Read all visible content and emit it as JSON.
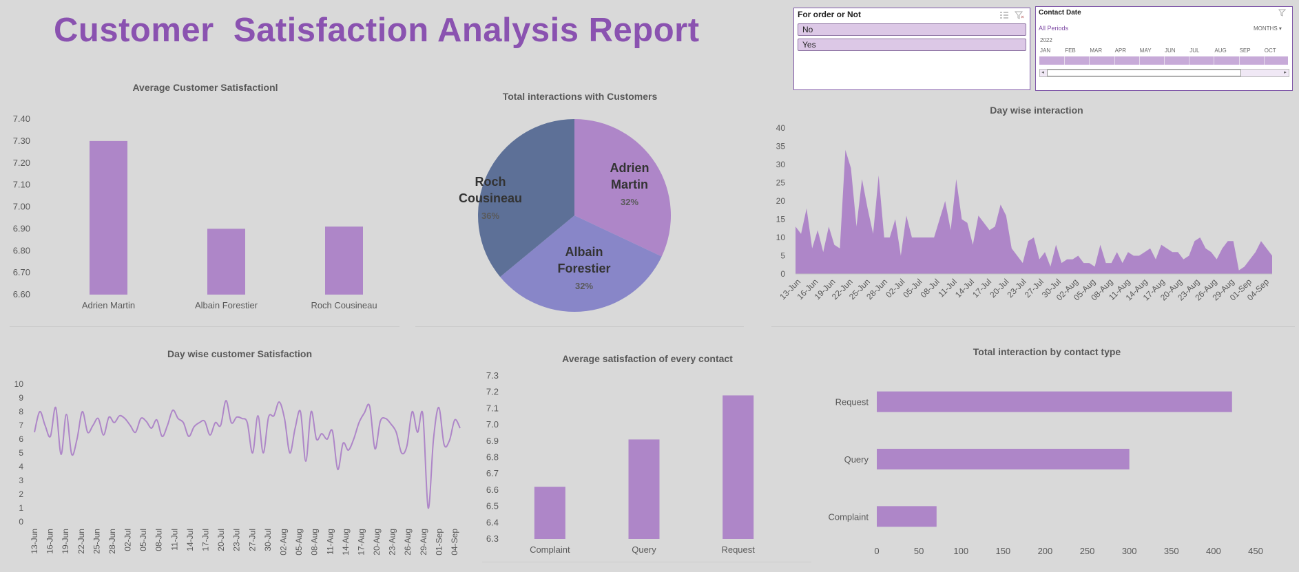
{
  "report_title": "Customer  Satisfaction Analysis Report",
  "slicer_order": {
    "title": "For order or Not",
    "items": [
      "No",
      "Yes"
    ]
  },
  "slicer_date": {
    "title": "Contact Date",
    "period_label": "All Periods",
    "unit_label": "MONTHS",
    "year": "2022",
    "months": [
      "JAN",
      "FEB",
      "MAR",
      "APR",
      "MAY",
      "JUN",
      "JUL",
      "AUG",
      "SEP",
      "OCT"
    ]
  },
  "colors": {
    "purple": "#ae86c8",
    "slate": "#5d7097",
    "periwinkle": "#8886c8",
    "title": "#8a52b0",
    "background": "#d9d9d9"
  },
  "chart_data": [
    {
      "id": "avg_agent",
      "type": "bar",
      "title": "Average Customer Satisfactionl",
      "categories": [
        "Adrien Martin",
        "Albain Forestier",
        "Roch Cousineau"
      ],
      "values": [
        7.3,
        6.9,
        6.91
      ],
      "ylim": [
        6.6,
        7.4
      ],
      "yticks": [
        "6.60",
        "6.70",
        "6.80",
        "6.90",
        "7.00",
        "7.10",
        "7.20",
        "7.30",
        "7.40"
      ]
    },
    {
      "id": "pie_interactions",
      "type": "pie",
      "title": "Total interactions with Customers",
      "slices": [
        {
          "label": "Adrien Martin",
          "value": 32,
          "pct": "32%"
        },
        {
          "label": "Albain Forestier",
          "value": 32,
          "pct": "32%"
        },
        {
          "label": "Roch Cousineau",
          "value": 36,
          "pct": "36%"
        }
      ]
    },
    {
      "id": "day_interaction",
      "type": "area",
      "title": "Day wise  interaction",
      "ylim": [
        0,
        40
      ],
      "yticks": [
        "0",
        "5",
        "10",
        "15",
        "20",
        "25",
        "30",
        "35",
        "40"
      ],
      "xlabels": [
        "13-Jun",
        "16-Jun",
        "19-Jun",
        "22-Jun",
        "25-Jun",
        "28-Jun",
        "02-Jul",
        "05-Jul",
        "08-Jul",
        "11-Jul",
        "14-Jul",
        "17-Jul",
        "20-Jul",
        "23-Jul",
        "27-Jul",
        "30-Jul",
        "02-Aug",
        "05-Aug",
        "08-Aug",
        "11-Aug",
        "14-Aug",
        "17-Aug",
        "20-Aug",
        "23-Aug",
        "26-Aug",
        "29-Aug",
        "01-Sep",
        "04-Sep"
      ],
      "values": [
        13,
        11,
        18,
        7,
        12,
        6,
        13,
        8,
        7,
        34,
        29,
        13,
        26,
        18,
        11,
        27,
        10,
        10,
        15,
        5,
        16,
        10,
        10,
        10,
        10,
        10,
        15,
        20,
        12,
        26,
        15,
        14,
        8,
        16,
        14,
        12,
        13,
        19,
        16,
        7,
        5,
        3,
        9,
        10,
        4,
        6,
        2,
        8,
        3,
        4,
        4,
        5,
        3,
        3,
        2,
        8,
        3,
        3,
        6,
        3,
        6,
        5,
        5,
        6,
        7,
        4,
        8,
        7,
        6,
        6,
        4,
        5,
        9,
        10,
        7,
        6,
        4,
        7,
        9,
        9,
        1,
        2,
        4,
        6,
        9,
        7,
        5
      ],
      "series_color": "#ae86c8"
    },
    {
      "id": "day_satisfaction",
      "type": "line",
      "title": "Day wise customer Satisfaction",
      "ylim": [
        0,
        10
      ],
      "yticks": [
        "0",
        "1",
        "2",
        "3",
        "4",
        "5",
        "6",
        "7",
        "8",
        "9",
        "10"
      ],
      "xlabels": [
        "13-Jun",
        "16-Jun",
        "19-Jun",
        "22-Jun",
        "25-Jun",
        "28-Jun",
        "02-Jul",
        "05-Jul",
        "08-Jul",
        "11-Jul",
        "14-Jul",
        "17-Jul",
        "20-Jul",
        "23-Jul",
        "27-Jul",
        "30-Jul",
        "02-Aug",
        "05-Aug",
        "08-Aug",
        "11-Aug",
        "14-Aug",
        "17-Aug",
        "20-Aug",
        "23-Aug",
        "26-Aug",
        "29-Aug",
        "01-Sep",
        "04-Sep"
      ],
      "values": [
        6.5,
        8,
        7,
        6.2,
        8.3,
        4.9,
        7.8,
        4.9,
        6,
        8,
        6.5,
        7,
        7.5,
        6.3,
        7.6,
        7.2,
        7.7,
        7.5,
        7,
        6.5,
        7.5,
        7.3,
        6.8,
        7.4,
        6.2,
        7,
        8.1,
        7.5,
        7.2,
        6.2,
        6.9,
        7.2,
        7.3,
        6.3,
        7.2,
        7,
        8.8,
        7.2,
        7.6,
        7.5,
        7.2,
        5,
        7.7,
        5,
        7.6,
        7.7,
        8.7,
        7.5,
        5,
        6.8,
        8,
        4.4,
        8,
        6,
        6.4,
        6,
        6.6,
        3.8,
        5.7,
        5.2,
        6,
        7.2,
        7.9,
        8.4,
        5.3,
        7.3,
        7.5,
        7.1,
        6.5,
        5,
        5.5,
        8,
        6.5,
        7.8,
        1,
        6,
        8.3,
        5.6,
        5.9,
        7.4,
        6.8
      ],
      "series_color": "#ae86c8"
    },
    {
      "id": "avg_contact",
      "type": "bar",
      "title": "Average satisfaction of every contact",
      "categories": [
        "Complaint",
        "Query",
        "Request"
      ],
      "values": [
        6.62,
        6.91,
        7.18
      ],
      "ylim": [
        6.3,
        7.3
      ],
      "yticks": [
        "6.3",
        "6.4",
        "6.5",
        "6.6",
        "6.7",
        "6.8",
        "6.9",
        "7.0",
        "7.1",
        "7.2",
        "7.3"
      ]
    },
    {
      "id": "contact_type",
      "type": "bar",
      "orientation": "horizontal",
      "title": "Total interaction  by contact  type",
      "categories": [
        "Request",
        "Query",
        "Complaint"
      ],
      "values": [
        422,
        300,
        71
      ],
      "xlim": [
        0,
        450
      ],
      "xticks": [
        "0",
        "50",
        "100",
        "150",
        "200",
        "250",
        "300",
        "350",
        "400",
        "450"
      ]
    }
  ]
}
